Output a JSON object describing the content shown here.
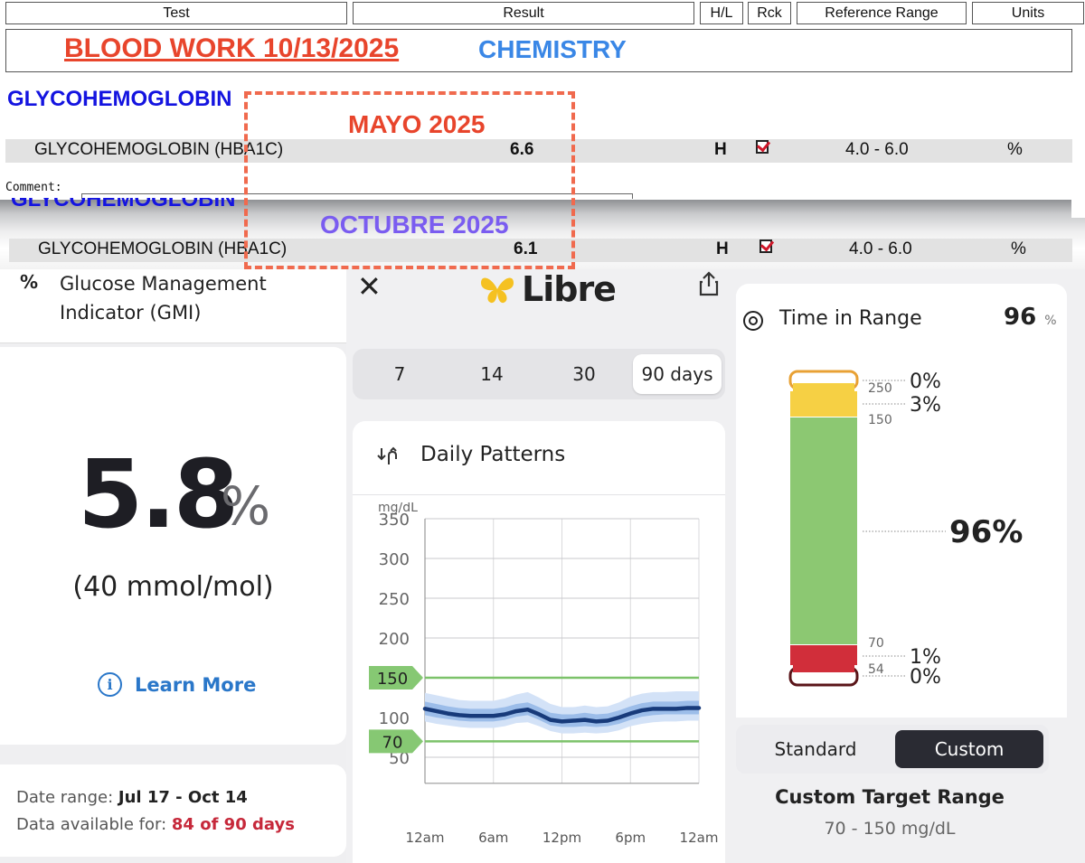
{
  "lab": {
    "headers": {
      "test": "Test",
      "result": "Result",
      "hl": "H/L",
      "rck": "Rck",
      "ref": "Reference Range",
      "units": "Units"
    },
    "title": "BLOOD WORK 10/13/2025",
    "subtitle": "CHEMISTRY",
    "section": "GLYCOHEMOGLOBIN",
    "label_may": "MAYO 2025",
    "label_oct": "OCTUBRE 2025",
    "comment": "Comment:",
    "rows": [
      {
        "test": "GLYCOHEMOGLOBIN (HBA1C)",
        "result": "6.6",
        "hl": "H",
        "ref": "4.0 - 6.0",
        "units": "%"
      },
      {
        "test": "GLYCOHEMOGLOBIN (HBA1C)",
        "result": "6.1",
        "hl": "H",
        "ref": "4.0 - 6.0",
        "units": "%"
      }
    ],
    "colors": {
      "title": "#e8452c",
      "subtitle": "#3a87e6",
      "section": "#1414e0",
      "octubre": "#7a5cf0",
      "dash": "#f06a4e"
    }
  },
  "gmi": {
    "icon": "%",
    "title": "Glucose Management Indicator (GMI)",
    "value": "5.8",
    "unit": "%",
    "mmol": "(40 mmol/mol)",
    "learn_more": "Learn More",
    "date_range_label": "Date range:",
    "date_range": "Jul 17 - Oct 14",
    "available_label": "Data available for:",
    "available": "84 of 90 days"
  },
  "libre": {
    "logo": "Libre",
    "tabs": [
      "7",
      "14",
      "30",
      "90 days"
    ],
    "active_tab": 3,
    "section_title": "Daily Patterns"
  },
  "chart_data": {
    "type": "area",
    "title": "Daily Patterns",
    "ylabel": "mg/dL",
    "ylim": [
      40,
      350
    ],
    "yticks": [
      "350",
      "300",
      "250",
      "200",
      "100",
      "50"
    ],
    "x": [
      "12am",
      "6am",
      "12pm",
      "6pm",
      "12am"
    ],
    "target_lines": [
      {
        "label": "150",
        "value": 150
      },
      {
        "label": "70",
        "value": 70
      }
    ],
    "grid": true,
    "series": [
      {
        "hours": [
          0,
          1,
          2,
          3,
          4,
          5,
          6,
          7,
          8,
          9,
          10,
          11,
          12,
          13,
          14,
          15,
          16,
          17,
          18,
          19,
          20,
          21,
          22,
          23,
          24
        ],
        "median": [
          111,
          108,
          105,
          103,
          102,
          102,
          102,
          104,
          108,
          110,
          104,
          97,
          95,
          96,
          97,
          95,
          96,
          100,
          105,
          109,
          111,
          111,
          111,
          112,
          112
        ],
        "p25": [
          103,
          100,
          98,
          96,
          95,
          95,
          95,
          97,
          101,
          103,
          97,
          90,
          88,
          88,
          89,
          88,
          89,
          92,
          97,
          101,
          103,
          104,
          104,
          104,
          104
        ],
        "p75": [
          120,
          117,
          114,
          112,
          111,
          111,
          111,
          113,
          117,
          119,
          113,
          106,
          104,
          104,
          106,
          104,
          105,
          109,
          114,
          118,
          120,
          120,
          120,
          121,
          121
        ],
        "p10": [
          95,
          92,
          90,
          88,
          87,
          87,
          87,
          89,
          93,
          94,
          89,
          83,
          80,
          80,
          81,
          80,
          81,
          84,
          89,
          92,
          94,
          95,
          95,
          96,
          96
        ],
        "p90": [
          131,
          128,
          125,
          122,
          121,
          121,
          121,
          124,
          129,
          132,
          125,
          117,
          113,
          113,
          115,
          113,
          114,
          119,
          126,
          130,
          132,
          132,
          133,
          133,
          133
        ]
      }
    ]
  },
  "tir": {
    "title": "Time in Range",
    "value": "96",
    "unit": "%",
    "big_value": "96%",
    "bands": [
      {
        "pct": "0%",
        "color": "#e8a135"
      },
      {
        "pct": "3%",
        "color": "#f6d044"
      },
      {
        "pct": "96%",
        "color": "#8cc872"
      },
      {
        "pct": "1%",
        "color": "#d12e3a"
      },
      {
        "pct": "0%",
        "color": "#5a1519"
      }
    ],
    "thresholds": [
      "250",
      "150",
      "70",
      "54"
    ],
    "toggle": [
      "Standard",
      "Custom"
    ],
    "target_title": "Custom Target Range",
    "target_range": "70 - 150 mg/dL"
  }
}
